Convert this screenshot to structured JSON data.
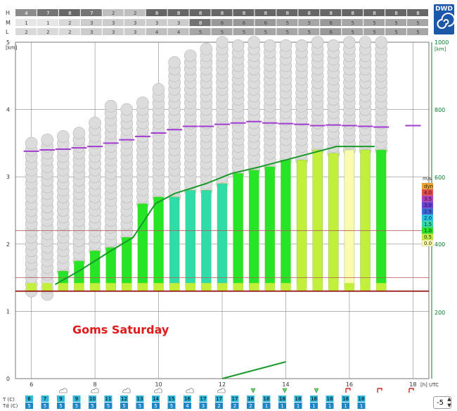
{
  "logo": {
    "text": "DWD"
  },
  "cloud_rows": [
    {
      "label": "H",
      "values": [
        "4",
        "7",
        "8",
        "7",
        "2",
        "2",
        "8",
        "8",
        "8",
        "8",
        "8",
        "8",
        "8",
        "8",
        "8",
        "8",
        "8",
        "8",
        "8"
      ],
      "shade": [
        0.55,
        0.45,
        0.4,
        0.45,
        0.75,
        0.75,
        0.4,
        0.4,
        0.4,
        0.4,
        0.4,
        0.4,
        0.4,
        0.4,
        0.4,
        0.4,
        0.4,
        0.4,
        0.4
      ]
    },
    {
      "label": "M",
      "values": [
        "1",
        "1",
        "2",
        "3",
        "3",
        "3",
        "3",
        "3",
        "8",
        "6",
        "6",
        "6",
        "5",
        "5",
        "6",
        "5",
        "5",
        "5",
        "5"
      ],
      "shade": [
        0.9,
        0.9,
        0.85,
        0.8,
        0.8,
        0.8,
        0.8,
        0.8,
        0.45,
        0.6,
        0.6,
        0.6,
        0.65,
        0.65,
        0.6,
        0.65,
        0.65,
        0.65,
        0.65
      ]
    },
    {
      "label": "L",
      "values": [
        "2",
        "2",
        "2",
        "3",
        "3",
        "3",
        "4",
        "4",
        "5",
        "5",
        "5",
        "5",
        "5",
        "5",
        "6",
        "5",
        "5",
        "5",
        "5"
      ],
      "shade": [
        0.85,
        0.85,
        0.85,
        0.8,
        0.8,
        0.8,
        0.75,
        0.75,
        0.65,
        0.65,
        0.65,
        0.65,
        0.65,
        0.65,
        0.6,
        0.65,
        0.65,
        0.65,
        0.65
      ]
    }
  ],
  "chart_data": {
    "type": "meteogram",
    "annotation": "Goms Saturday",
    "xlabel": "[h] UTC",
    "x_ticks": [
      "6",
      "8",
      "10",
      "12",
      "14",
      "16",
      "18"
    ],
    "hours": [
      5.5,
      6,
      6.5,
      7,
      7.5,
      8,
      8.5,
      9,
      9.5,
      10,
      10.5,
      11,
      11.5,
      12,
      12.5,
      13,
      13.5,
      14,
      14.5,
      15,
      15.5,
      16,
      16.5,
      17,
      17.5,
      18,
      18.5
    ],
    "left_axis": {
      "label": "[km]",
      "ticks": [
        "0",
        "1",
        "2",
        "3",
        "4",
        "5"
      ],
      "range": [
        0,
        5
      ]
    },
    "right_axis": {
      "label": "[km]",
      "ticks": [
        "200",
        "400",
        "600",
        "800",
        "1000"
      ]
    },
    "columns": {
      "hours": [
        6,
        6.5,
        7,
        7.5,
        8,
        8.5,
        9,
        9.5,
        10,
        10.5,
        11,
        11.5,
        12,
        12.5,
        13,
        13.5,
        14,
        14.5,
        15,
        15.5,
        16,
        16.5,
        17,
        17.5,
        18
      ],
      "cloud_top_km": [
        3.55,
        3.6,
        3.7,
        3.75,
        3.9,
        4.1,
        4.05,
        4.2,
        4.35,
        4.7,
        4.8,
        4.9,
        5,
        5,
        5,
        5,
        5,
        5,
        5,
        5,
        5,
        5,
        5,
        0,
        0
      ],
      "thermal_top_km": [
        1.3,
        1.25,
        1.6,
        1.75,
        1.9,
        1.95,
        2.1,
        2.6,
        2.7,
        2.7,
        2.8,
        2.8,
        2.9,
        3.05,
        3.1,
        3.15,
        3.25,
        3.25,
        3.4,
        3.35,
        3.4,
        3.4,
        3.4,
        0,
        0
      ],
      "lift_class": [
        0,
        1,
        2,
        2,
        3,
        3,
        4,
        5,
        5,
        6,
        6,
        7,
        6,
        5,
        5,
        9,
        9,
        10,
        10,
        11,
        12,
        10,
        9,
        0,
        0
      ],
      "marker_km": [
        3.38,
        3.4,
        3.41,
        3.43,
        3.45,
        3.5,
        3.55,
        3.6,
        3.65,
        3.7,
        3.75,
        3.75,
        3.78,
        3.8,
        3.82,
        3.8,
        3.79,
        3.78,
        3.76,
        3.77,
        3.76,
        3.75,
        3.74,
        0,
        3.76
      ]
    },
    "lines_km": {
      "freezing": 1.3,
      "brown": 1.5,
      "red": 2.2
    },
    "line_series": {
      "name": "",
      "x": [
        6.75,
        7.5,
        8.5,
        9.2,
        9.9,
        10.5,
        11.5,
        12.3,
        13.2,
        14,
        15.6,
        16.8
      ],
      "y": [
        1.4,
        1.6,
        1.9,
        2.1,
        2.6,
        2.75,
        2.9,
        3.05,
        3.15,
        3.25,
        3.45,
        3.45
      ]
    },
    "bottom_line": {
      "x": [
        12.0,
        14.0
      ],
      "y": [
        0.0,
        0.25
      ]
    },
    "legend": {
      "unit": "m/s",
      "items": [
        {
          "label": "dyn",
          "color": "#f2a32b"
        },
        {
          "label": "4.0",
          "color": "#e84a4a"
        },
        {
          "label": "3.5",
          "color": "#b23dbd"
        },
        {
          "label": "3.0",
          "color": "#6a3ed8"
        },
        {
          "label": "2.5",
          "color": "#3a66e0"
        },
        {
          "label": "2.0",
          "color": "#20c6e6"
        },
        {
          "label": "1.5",
          "color": "#2fdca8"
        },
        {
          "label": "1.0",
          "color": "#26e426"
        },
        {
          "label": "0.5",
          "color": "#c2f03a"
        },
        {
          "label": "0.0",
          "color": "#fbfbb0"
        }
      ]
    },
    "weather_icons": [
      "cloud",
      "cloud",
      "cloud",
      "cloud",
      "cloud",
      "cloud",
      "cloud",
      "cloud",
      "cloud",
      "shower",
      "shower",
      "shower",
      "thunder",
      "thunder",
      "thunder"
    ],
    "temperature": {
      "label": "T (C)",
      "values": [
        "6",
        "7",
        "9",
        "9",
        "10",
        "11",
        "12",
        "13",
        "14",
        "15",
        "16",
        "17",
        "17",
        "17",
        "18",
        "18",
        "18",
        "18",
        "18",
        "18",
        "18",
        "18"
      ]
    },
    "dewpoint": {
      "label": "Td (C)",
      "values": [
        "5",
        "5",
        "5",
        "5",
        "5",
        "5",
        "5",
        "5",
        "5",
        "5",
        "4",
        "3",
        "2",
        "2",
        "2",
        "1",
        "1",
        "1",
        "1",
        "1",
        "1",
        "1"
      ]
    }
  },
  "spinner": {
    "value": "-5",
    "up": "▲",
    "down": "▼"
  }
}
